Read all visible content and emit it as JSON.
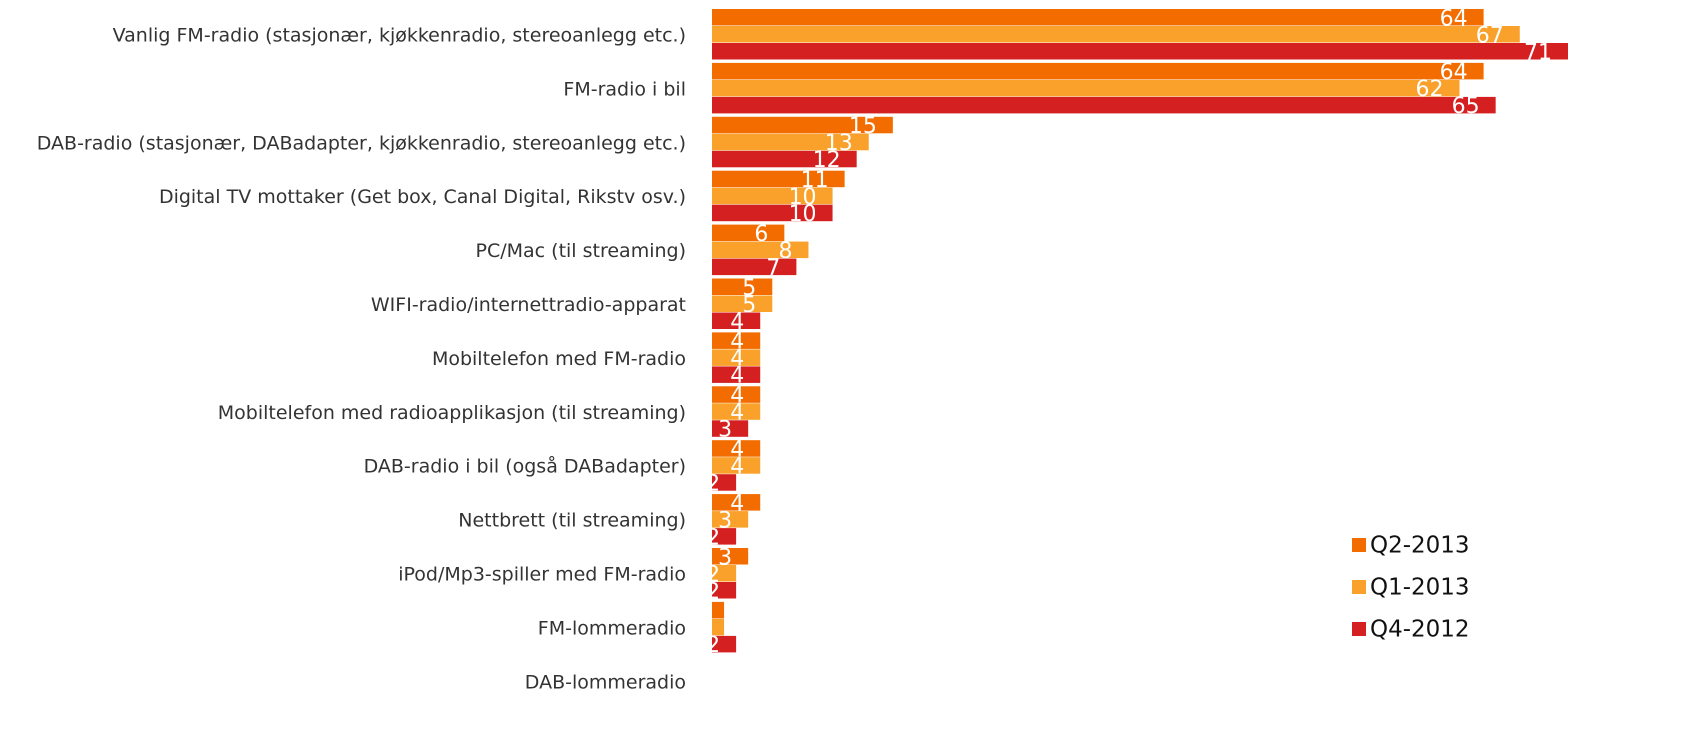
{
  "chart_data": {
    "type": "hbar",
    "categories": [
      "Vanlig FM-radio (stasjonær, kjøkkenradio, stereoanlegg etc.)",
      "FM-radio i bil",
      "DAB-radio (stasjonær, DABadapter, kjøkkenradio, stereoanlegg etc.)",
      "Digital TV mottaker (Get box, Canal Digital, Rikstv osv.)",
      "PC/Mac (til streaming)",
      "WIFI-radio/internettradio-apparat",
      "Mobiltelefon med FM-radio",
      "Mobiltelefon med radioapplikasjon (til streaming)",
      "DAB-radio i bil (også DABadapter)",
      "Nettbrett (til streaming)",
      "iPod/Mp3-spiller med FM-radio",
      "FM-lommeradio",
      "DAB-lommeradio"
    ],
    "series": [
      {
        "name": "Q2-2013",
        "color": "#f26c00",
        "values": [
          64,
          64,
          15,
          11,
          6,
          5,
          4,
          4,
          4,
          4,
          3,
          1,
          0
        ]
      },
      {
        "name": "Q1-2013",
        "color": "#f9a12a",
        "values": [
          67,
          62,
          13,
          10,
          8,
          5,
          4,
          4,
          4,
          3,
          2,
          1,
          0
        ]
      },
      {
        "name": "Q4-2012",
        "color": "#d42020",
        "values": [
          71,
          65,
          12,
          10,
          7,
          4,
          4,
          3,
          2,
          2,
          2,
          2,
          0
        ]
      }
    ],
    "xlim": [
      0,
      71
    ],
    "legend": "lower right"
  }
}
